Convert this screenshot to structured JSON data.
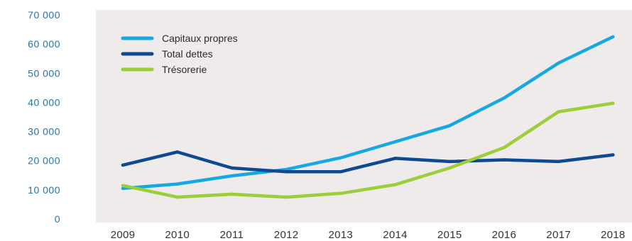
{
  "chart_data": {
    "type": "line",
    "title": "",
    "xlabel": "",
    "ylabel": "",
    "ylim": [
      0,
      70000
    ],
    "yticks": [
      0,
      10000,
      20000,
      30000,
      40000,
      50000,
      60000,
      70000
    ],
    "ytick_labels": [
      "0",
      "10 000",
      "20 000",
      "30 000",
      "40 000",
      "50 000",
      "60 000",
      "70 000"
    ],
    "x": [
      "2009",
      "2010",
      "2011",
      "2012",
      "2013",
      "2014",
      "2015",
      "2016",
      "2017",
      "2018"
    ],
    "legend_position": "top-left",
    "grid": false,
    "series": [
      {
        "name": "Capitaux propres",
        "color": "#16a8e4",
        "values": [
          10500,
          12000,
          14800,
          17000,
          21000,
          26500,
          32000,
          41500,
          53500,
          62500
        ]
      },
      {
        "name": "Total dettes",
        "color": "#0d4a92",
        "values": [
          18500,
          23000,
          17500,
          16200,
          16200,
          20800,
          19700,
          20300,
          19700,
          22000
        ]
      },
      {
        "name": "Trésorerie",
        "color": "#9ccd3a",
        "values": [
          11500,
          7500,
          8500,
          7500,
          8800,
          11800,
          17500,
          24500,
          36800,
          39700
        ]
      }
    ]
  }
}
